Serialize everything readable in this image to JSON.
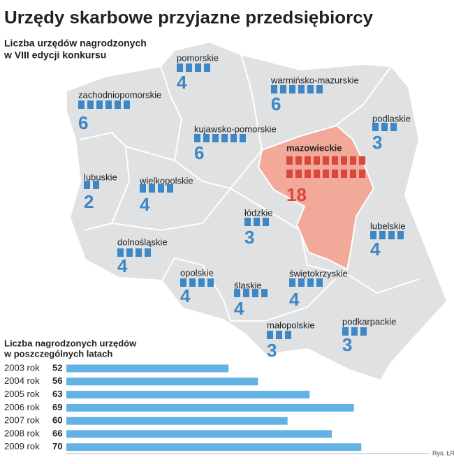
{
  "title": "Urzędy skarbowe przyjazne przedsiębiorcy",
  "map": {
    "title_lines": [
      "Liczba urzędów nagrodzonych",
      "w VIII edycji konkursu"
    ],
    "regions": [
      {
        "name": "pomorskie",
        "count": 4,
        "color": "#3d87c4"
      },
      {
        "name": "zachodniopomorskie",
        "count": 6,
        "color": "#3d87c4"
      },
      {
        "name": "warmińsko-mazurskie",
        "count": 6,
        "color": "#3d87c4"
      },
      {
        "name": "kujawsko-pomorskie",
        "count": 6,
        "color": "#3d87c4"
      },
      {
        "name": "podlaskie",
        "count": 3,
        "color": "#3d87c4"
      },
      {
        "name": "mazowieckie",
        "count": 18,
        "color": "#d9473f",
        "highlight": true
      },
      {
        "name": "lubuskie",
        "count": 2,
        "color": "#3d87c4"
      },
      {
        "name": "wielkopolskie",
        "count": 4,
        "color": "#3d87c4"
      },
      {
        "name": "łódzkie",
        "count": 3,
        "color": "#3d87c4"
      },
      {
        "name": "lubelskie",
        "count": 4,
        "color": "#3d87c4"
      },
      {
        "name": "dolnośląskie",
        "count": 4,
        "color": "#3d87c4"
      },
      {
        "name": "opolskie",
        "count": 4,
        "color": "#3d87c4"
      },
      {
        "name": "śląskie",
        "count": 4,
        "color": "#3d87c4"
      },
      {
        "name": "świętokrzyskie",
        "count": 4,
        "color": "#3d87c4"
      },
      {
        "name": "małopolskie",
        "count": 3,
        "color": "#3d87c4"
      },
      {
        "name": "podkarpackie",
        "count": 3,
        "color": "#3d87c4"
      }
    ]
  },
  "chart_data": {
    "type": "bar",
    "orientation": "horizontal",
    "title_lines": [
      "Liczba nagrodzonych urzędów",
      "w poszczególnych latach"
    ],
    "categories": [
      "2003 rok",
      "2004 rok",
      "2005 rok",
      "2006 rok",
      "2007 rok",
      "2008 rok",
      "2009 rok"
    ],
    "values": [
      52,
      56,
      63,
      69,
      60,
      66,
      70
    ],
    "color": "#62b3e3",
    "xlim": [
      30,
      75
    ]
  },
  "credit": "Rys. ŁR"
}
